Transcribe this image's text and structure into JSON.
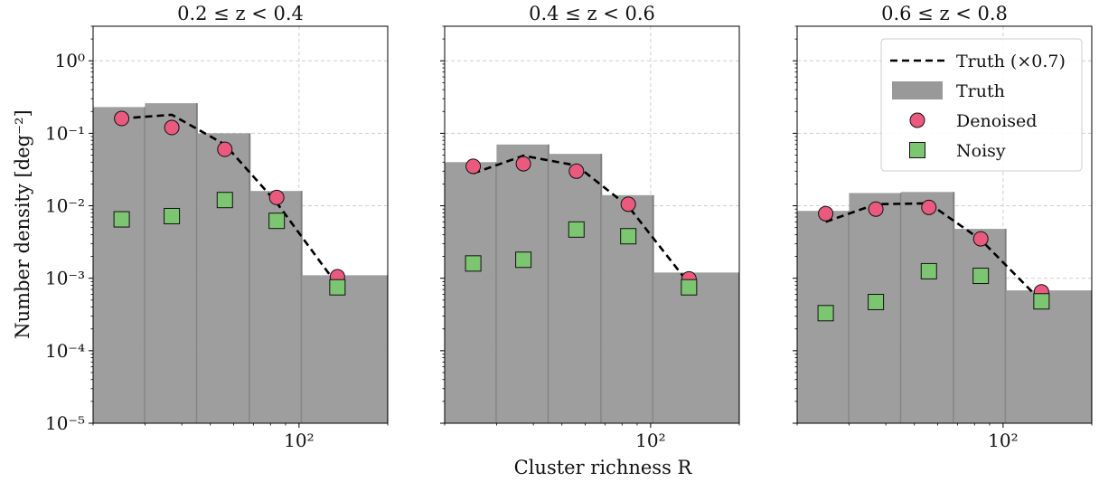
{
  "figure": {
    "ylabel": "Number density [deg⁻²]",
    "xlabel": "Cluster richness R",
    "colors": {
      "truth_bar": "#999999",
      "truth_bar_edge": "#7f7f7f",
      "truth_line": "#000000",
      "denoised": "#ea5a7e",
      "noisy": "#7cc571",
      "marker_edge": "#111111",
      "grid": "#cfcfcf"
    }
  },
  "chart_data": [
    {
      "type": "bar",
      "title": "0.2 ≤ z < 0.4",
      "xscale": "log",
      "yscale": "log",
      "xlim": [
        20,
        200
      ],
      "ylim": [
        1e-05,
        3
      ],
      "xtick_labels": [
        {
          "value": 100,
          "label": "10²"
        }
      ],
      "ytick_labels": [
        {
          "value": 1e-05,
          "label": "10⁻⁵"
        },
        {
          "value": 0.0001,
          "label": "10⁻⁴"
        },
        {
          "value": 0.001,
          "label": "10⁻³"
        },
        {
          "value": 0.01,
          "label": "10⁻²"
        },
        {
          "value": 0.1,
          "label": "10⁻¹"
        },
        {
          "value": 1,
          "label": "10⁰"
        }
      ],
      "grid": true,
      "truth_bins": [
        {
          "lo": 20,
          "hi": 30,
          "value": 0.23
        },
        {
          "lo": 30,
          "hi": 45,
          "value": 0.26
        },
        {
          "lo": 45,
          "hi": 68,
          "value": 0.1
        },
        {
          "lo": 68,
          "hi": 102,
          "value": 0.016
        },
        {
          "lo": 102,
          "hi": 200,
          "value": 0.0011
        }
      ],
      "series": [
        {
          "name": "Truth (×0.7)",
          "kind": "line",
          "x": [
            25,
            37,
            56,
            84,
            135
          ],
          "y": [
            0.16,
            0.18,
            0.07,
            0.011,
            0.0008
          ]
        },
        {
          "name": "Denoised",
          "kind": "scatter",
          "x": [
            25,
            37,
            56,
            84,
            135
          ],
          "y": [
            0.16,
            0.12,
            0.06,
            0.013,
            0.00105
          ]
        },
        {
          "name": "Noisy",
          "kind": "scatter",
          "x": [
            25,
            37,
            56,
            84,
            135
          ],
          "y": [
            0.0065,
            0.0072,
            0.012,
            0.0062,
            0.00075
          ]
        }
      ]
    },
    {
      "type": "bar",
      "title": "0.4 ≤ z < 0.6",
      "xscale": "log",
      "yscale": "log",
      "xlim": [
        20,
        200
      ],
      "ylim": [
        1e-05,
        3
      ],
      "xtick_labels": [
        {
          "value": 100,
          "label": "10²"
        }
      ],
      "grid": true,
      "truth_bins": [
        {
          "lo": 20,
          "hi": 30,
          "value": 0.04
        },
        {
          "lo": 30,
          "hi": 45,
          "value": 0.07
        },
        {
          "lo": 45,
          "hi": 68,
          "value": 0.052
        },
        {
          "lo": 68,
          "hi": 102,
          "value": 0.014
        },
        {
          "lo": 102,
          "hi": 200,
          "value": 0.0012
        }
      ],
      "series": [
        {
          "name": "Truth (×0.7)",
          "kind": "line",
          "x": [
            25,
            37,
            56,
            84,
            135
          ],
          "y": [
            0.028,
            0.049,
            0.036,
            0.0098,
            0.00084
          ]
        },
        {
          "name": "Denoised",
          "kind": "scatter",
          "x": [
            25,
            37,
            56,
            84,
            135
          ],
          "y": [
            0.035,
            0.038,
            0.03,
            0.0105,
            0.00098
          ]
        },
        {
          "name": "Noisy",
          "kind": "scatter",
          "x": [
            25,
            37,
            56,
            84,
            135
          ],
          "y": [
            0.0016,
            0.0018,
            0.0047,
            0.0038,
            0.00075
          ]
        }
      ]
    },
    {
      "type": "bar",
      "title": "0.6 ≤ z < 0.8",
      "xscale": "log",
      "yscale": "log",
      "xlim": [
        20,
        200
      ],
      "ylim": [
        1e-05,
        3
      ],
      "xtick_labels": [
        {
          "value": 100,
          "label": "10²"
        }
      ],
      "grid": true,
      "legend_position": "top-right",
      "truth_bins": [
        {
          "lo": 20,
          "hi": 30,
          "value": 0.0085
        },
        {
          "lo": 30,
          "hi": 45,
          "value": 0.015
        },
        {
          "lo": 45,
          "hi": 68,
          "value": 0.0155
        },
        {
          "lo": 68,
          "hi": 102,
          "value": 0.0048
        },
        {
          "lo": 102,
          "hi": 200,
          "value": 0.00068
        }
      ],
      "series": [
        {
          "name": "Truth (×0.7)",
          "kind": "line",
          "x": [
            25,
            37,
            56,
            84,
            135
          ],
          "y": [
            0.006,
            0.0105,
            0.0108,
            0.0034,
            0.00048
          ]
        },
        {
          "name": "Denoised",
          "kind": "scatter",
          "x": [
            25,
            37,
            56,
            84,
            135
          ],
          "y": [
            0.0078,
            0.009,
            0.0095,
            0.0035,
            0.00065
          ]
        },
        {
          "name": "Noisy",
          "kind": "scatter",
          "x": [
            25,
            37,
            56,
            84,
            135
          ],
          "y": [
            0.00033,
            0.00047,
            0.00125,
            0.00108,
            0.00048
          ]
        }
      ]
    }
  ],
  "legend": {
    "entries": [
      {
        "label": "Truth (×0.7)",
        "icon": "dashed-line"
      },
      {
        "label": "Truth",
        "icon": "gray-patch"
      },
      {
        "label": "Denoised",
        "icon": "pink-circle"
      },
      {
        "label": "Noisy",
        "icon": "green-square"
      }
    ]
  }
}
